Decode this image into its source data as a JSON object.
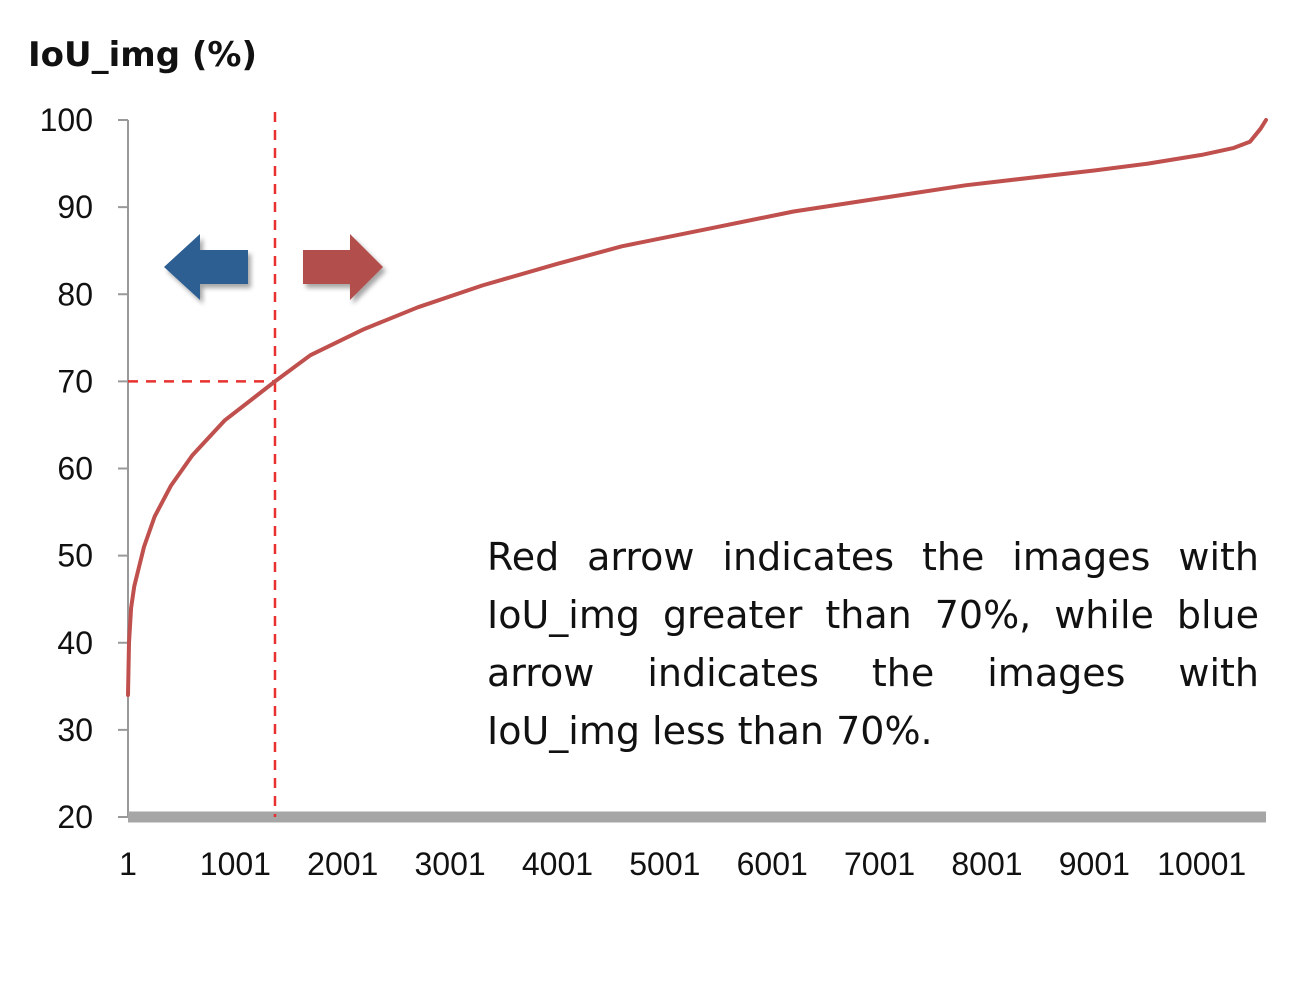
{
  "chart_data": {
    "type": "line",
    "title": "",
    "ylabel": "IoU_img (%)",
    "xlabel": "",
    "xlim": [
      1,
      10600
    ],
    "ylim": [
      20,
      100
    ],
    "x_ticks": [
      "1",
      "1001",
      "2001",
      "3001",
      "4001",
      "5001",
      "6001",
      "7001",
      "8001",
      "9001",
      "10001"
    ],
    "x_tick_values": [
      1,
      1001,
      2001,
      3001,
      4001,
      5001,
      6001,
      7001,
      8001,
      9001,
      10001
    ],
    "y_ticks": [
      "20",
      "30",
      "40",
      "50",
      "60",
      "70",
      "80",
      "90",
      "100"
    ],
    "y_tick_values": [
      20,
      30,
      40,
      50,
      60,
      70,
      80,
      90,
      100
    ],
    "grid": false,
    "series": [
      {
        "name": "IoU_img",
        "color": "#c0504d",
        "x": [
          1,
          10,
          30,
          60,
          100,
          150,
          250,
          400,
          600,
          900,
          1370,
          1700,
          2200,
          2700,
          3300,
          4000,
          4600,
          5400,
          6200,
          7000,
          7800,
          8500,
          9000,
          9500,
          10000,
          10300,
          10450,
          10550,
          10600
        ],
        "y": [
          34,
          40,
          44,
          46.5,
          48.5,
          51,
          54.5,
          58,
          61.5,
          65.5,
          70,
          73,
          76,
          78.5,
          81,
          83.5,
          85.5,
          87.5,
          89.5,
          91,
          92.5,
          93.5,
          94.2,
          95,
          96,
          96.8,
          97.5,
          99,
          100
        ]
      }
    ],
    "reference_lines": [
      {
        "name": "threshold-x",
        "axis": "x",
        "value": 1370,
        "color": "#e8302e"
      },
      {
        "name": "threshold-y",
        "axis": "y",
        "value": 70,
        "color": "#e8302e"
      }
    ],
    "annotations": [
      {
        "name": "blue-arrow",
        "direction": "left",
        "color": "#2f5f93"
      },
      {
        "name": "red-arrow",
        "direction": "right",
        "color": "#b2504e"
      }
    ],
    "note": "Red arrow indicates the images with IoU_img greater than 70%, while blue arrow indicates the images with IoU_img less than 70%."
  },
  "colors": {
    "axis_line": "#999999",
    "x_axis_bar": "#a6a6a6"
  }
}
